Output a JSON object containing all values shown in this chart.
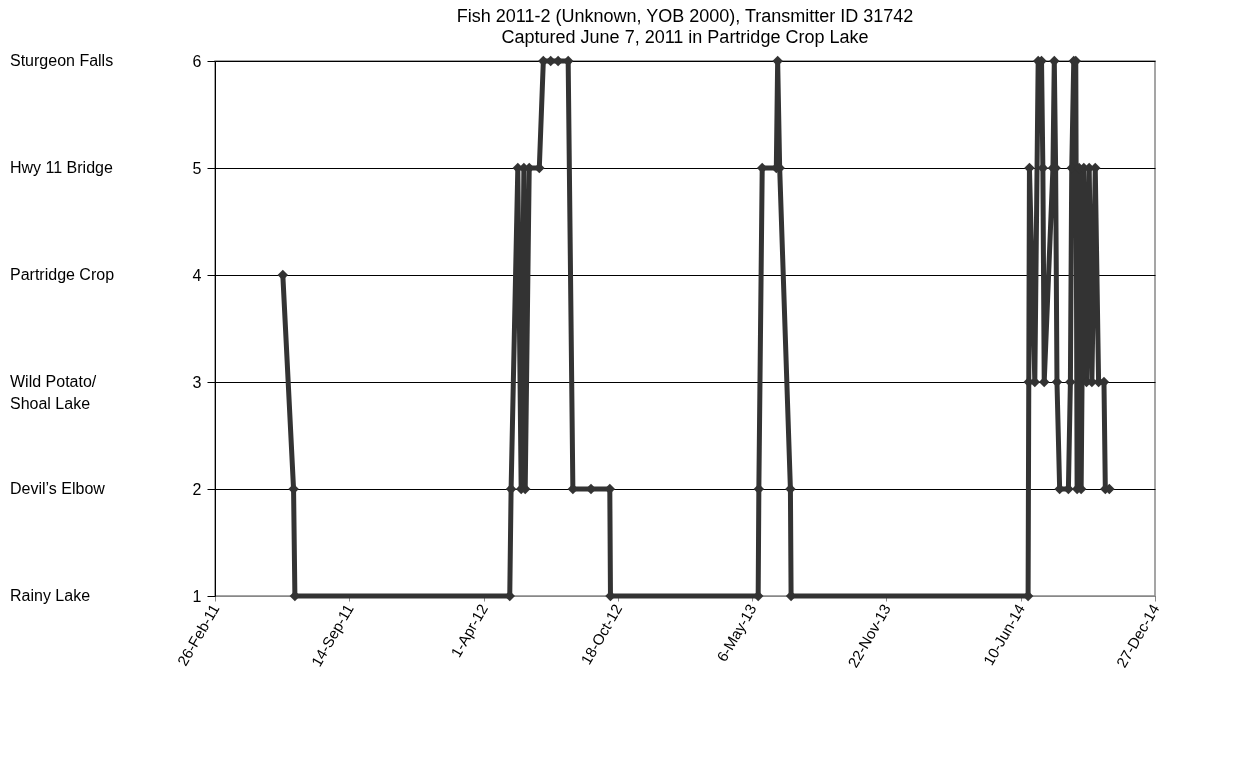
{
  "chart_data": {
    "type": "line",
    "title": "Fish 2011-2 (Unknown, YOB 2000), Transmitter ID 31742",
    "subtitle": "Captured June 7, 2011 in Partridge Crop Lake",
    "x": [
      "2011-06-07",
      "2011-06-23",
      "2011-06-25",
      "2012-05-10",
      "2012-05-12",
      "2012-05-22",
      "2012-05-27",
      "2012-05-31",
      "2012-06-02",
      "2012-06-08",
      "2012-06-23",
      "2012-06-29",
      "2012-07-10",
      "2012-07-21",
      "2012-08-05",
      "2012-08-12",
      "2012-09-08",
      "2012-10-06",
      "2012-10-07",
      "2013-05-15",
      "2013-05-16",
      "2013-05-21",
      "2013-06-11",
      "2013-06-13",
      "2013-06-16",
      "2013-07-02",
      "2013-07-03",
      "2014-06-21",
      "2014-06-22",
      "2014-06-23",
      "2014-07-01",
      "2014-07-06",
      "2014-07-11",
      "2014-07-13",
      "2014-07-15",
      "2014-07-28",
      "2014-07-30",
      "2014-08-01",
      "2014-08-03",
      "2014-08-07",
      "2014-08-20",
      "2014-08-23",
      "2014-08-25",
      "2014-08-28",
      "2014-08-31",
      "2014-09-02",
      "2014-09-05",
      "2014-09-08",
      "2014-09-12",
      "2014-09-16",
      "2014-09-20",
      "2014-09-24",
      "2014-09-29",
      "2014-10-04",
      "2014-10-12",
      "2014-10-14",
      "2014-10-20"
    ],
    "series": [
      {
        "color": "#333333",
        "values": [
          4,
          2,
          1,
          1,
          2,
          5,
          2,
          5,
          2,
          5,
          5,
          6,
          6,
          6,
          6,
          2,
          2,
          2,
          1,
          1,
          2,
          5,
          5,
          6,
          5,
          2,
          1,
          1,
          3,
          5,
          3,
          6,
          6,
          5,
          3,
          5,
          6,
          5,
          3,
          2,
          2,
          3,
          5,
          6,
          6,
          2,
          5,
          2,
          5,
          3,
          5,
          3,
          5,
          3,
          3,
          2,
          2
        ]
      }
    ],
    "xlim": [
      "2011-02-26",
      "2014-12-27"
    ],
    "xticks": [
      {
        "value": "2011-02-26",
        "label": "26-Feb-11"
      },
      {
        "value": "2011-09-14",
        "label": "14-Sep-11"
      },
      {
        "value": "2012-04-01",
        "label": "1-Apr-12"
      },
      {
        "value": "2012-10-18",
        "label": "18-Oct-12"
      },
      {
        "value": "2013-05-06",
        "label": "6-May-13"
      },
      {
        "value": "2013-11-22",
        "label": "22-Nov-13"
      },
      {
        "value": "2014-06-10",
        "label": "10-Jun-14"
      },
      {
        "value": "2014-12-27",
        "label": "27-Dec-14"
      }
    ],
    "ylim": [
      1,
      6
    ],
    "yticks": [
      1,
      2,
      3,
      4,
      5,
      6
    ],
    "annotations": [
      "Rainy Lake",
      "Devil’s Elbow",
      "Wild Potato/\nShoal Lake",
      "Partridge Crop",
      "Hwy 11 Bridge",
      "Sturgeon Falls"
    ],
    "grid": "y",
    "marker": "diamond",
    "line_style": "solid"
  }
}
